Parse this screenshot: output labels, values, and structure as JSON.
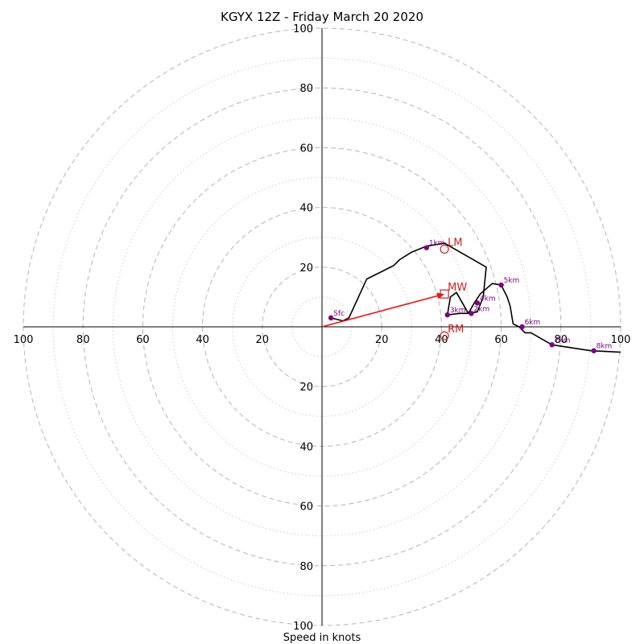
{
  "chart_data": {
    "type": "hodograph",
    "title": "KGYX 12Z - Friday March 20 2020",
    "xlabel": "Speed in knots",
    "range": [
      -100,
      100
    ],
    "ring_major": [
      20,
      40,
      60,
      80,
      100
    ],
    "ring_minor": [
      10,
      30,
      50,
      70,
      90
    ],
    "grid": true,
    "x_tick_labels": [
      "100",
      "80",
      "60",
      "40",
      "20",
      "20",
      "40",
      "60",
      "80",
      "100"
    ],
    "x_tick_values": [
      -100,
      -80,
      -60,
      -40,
      -20,
      20,
      40,
      60,
      80,
      100
    ],
    "y_tick_labels": [
      "100",
      "80",
      "60",
      "40",
      "20",
      "20",
      "40",
      "60",
      "80",
      "100"
    ],
    "y_tick_values": [
      100,
      80,
      60,
      40,
      20,
      -20,
      -40,
      -60,
      -80,
      -100
    ],
    "trace": [
      [
        3,
        3
      ],
      [
        7,
        2
      ],
      [
        9,
        3
      ],
      [
        15,
        16
      ],
      [
        20,
        18.5
      ],
      [
        24,
        20.5
      ],
      [
        26,
        22.5
      ],
      [
        30,
        25
      ],
      [
        35,
        27
      ],
      [
        41,
        28
      ],
      [
        55,
        20
      ],
      [
        54,
        10
      ],
      [
        52,
        5
      ],
      [
        49,
        4.5
      ],
      [
        47,
        8
      ],
      [
        45,
        11.5
      ],
      [
        43,
        10
      ],
      [
        42,
        4
      ],
      [
        46,
        4.5
      ],
      [
        49,
        4.5
      ],
      [
        51,
        8
      ],
      [
        53,
        11
      ],
      [
        57,
        14.5
      ],
      [
        60,
        14
      ],
      [
        62,
        10
      ],
      [
        63,
        7
      ],
      [
        64,
        1
      ],
      [
        66,
        0
      ],
      [
        68,
        -2
      ],
      [
        70,
        -2
      ],
      [
        77,
        -6
      ],
      [
        90,
        -8
      ],
      [
        100,
        -8.5
      ]
    ],
    "height_points": [
      {
        "label": "Sfc",
        "u": 3,
        "v": 3
      },
      {
        "label": "1km",
        "u": 35,
        "v": 26.5
      },
      {
        "label": "2km",
        "u": 50,
        "v": 4.5
      },
      {
        "label": "3km",
        "u": 42,
        "v": 4
      },
      {
        "label": "4km",
        "u": 52,
        "v": 8
      },
      {
        "label": "5km",
        "u": 60,
        "v": 14
      },
      {
        "label": "6km",
        "u": 67,
        "v": 0
      },
      {
        "label": "7km",
        "u": 77,
        "v": -6
      },
      {
        "label": "8km",
        "u": 91,
        "v": -8
      }
    ],
    "motions": [
      {
        "label": "LM",
        "u": 41,
        "v": 26,
        "marker": "circle"
      },
      {
        "label": "MW",
        "u": 41,
        "v": 11,
        "marker": "square"
      },
      {
        "label": "RM",
        "u": 41,
        "v": -3,
        "marker": "circle"
      }
    ],
    "mean_wind_arrow": {
      "from": [
        0,
        0
      ],
      "to": [
        41,
        11
      ]
    },
    "colors": {
      "trace": "#000000",
      "height_points": "#800080",
      "motion_labels": "#cc2222",
      "arrow": "#ee1111",
      "grid": "#bbbbbb"
    }
  }
}
